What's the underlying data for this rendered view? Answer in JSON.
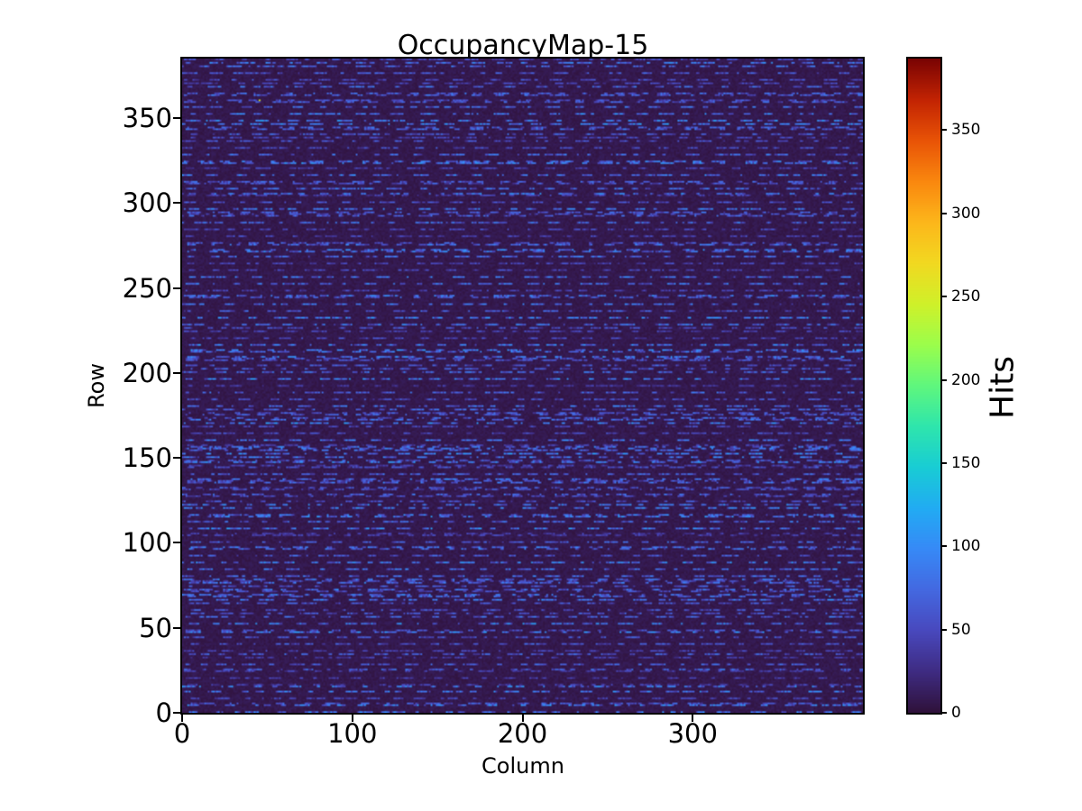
{
  "figure": {
    "title": "OccupancyMap-15",
    "colors": {
      "background": "#ffffff",
      "text": "#000000",
      "spine": "#000000",
      "heatmap_low": "#30123b",
      "heatmap_dash": "#4a6ee0",
      "heatmap_high": "#7a0403"
    }
  },
  "chart_data": {
    "type": "heatmap",
    "title": "OccupancyMap-15",
    "xlabel": "Column",
    "ylabel": "Row",
    "colorbar_label": "Hits",
    "colormap": "turbo",
    "origin": "lower",
    "cols": 400,
    "rows": 385,
    "xlim": [
      0,
      400
    ],
    "ylim": [
      0,
      385
    ],
    "vmin": 0,
    "vmax": 393,
    "xticks": [
      0,
      100,
      200,
      300
    ],
    "yticks": [
      0,
      50,
      100,
      150,
      200,
      250,
      300,
      350
    ],
    "colorbar_ticks": [
      0,
      50,
      100,
      150,
      200,
      250,
      300,
      350
    ],
    "grid": false,
    "pattern": {
      "description": "Mostly near-zero dark background with horizontal dashed streaks of moderate hit counts on periodic rows; rare isolated hot pixels up to vmax.",
      "seed": 15,
      "background_value_range": [
        2,
        11
      ],
      "streak_row_period": 4,
      "extra_streak_row_probability": 0.18,
      "row_brightness_range": [
        0.6,
        1.35
      ],
      "dash_value_range": [
        28,
        88
      ],
      "dash_length_range": [
        1,
        9
      ],
      "gap_length_range": [
        1,
        12
      ],
      "dash_value_clamp": [
        22,
        115
      ],
      "hot_pixels": [
        {
          "col": 45,
          "row": 360,
          "value": 250
        },
        {
          "col": 310,
          "row": 150,
          "value": 393
        }
      ]
    }
  }
}
